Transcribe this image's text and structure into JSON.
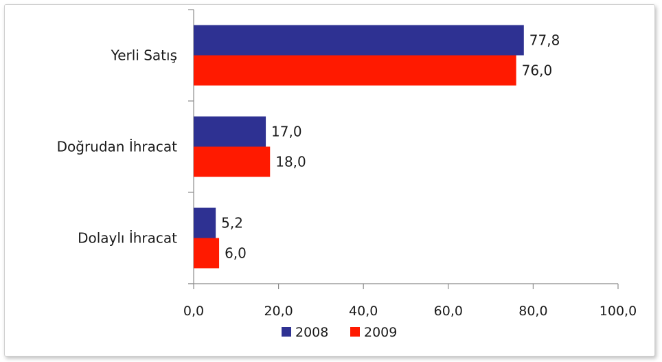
{
  "chart_data": {
    "type": "bar",
    "orientation": "horizontal",
    "categories": [
      "Yerli Satış",
      "Doğrudan İhracat",
      "Dolaylı İhracat"
    ],
    "series": [
      {
        "name": "2008",
        "color": "#2e3192",
        "values": [
          77.8,
          17.0,
          5.2
        ],
        "value_labels": [
          "77,8",
          "17,0",
          "5,2"
        ]
      },
      {
        "name": "2009",
        "color": "#ff1a00",
        "values": [
          76.0,
          18.0,
          6.0
        ],
        "value_labels": [
          "76,0",
          "18,0",
          "6,0"
        ]
      }
    ],
    "xlim": [
      0,
      100
    ],
    "xticks": [
      0,
      20,
      40,
      60,
      80,
      100
    ],
    "xtick_labels": [
      "0,0",
      "20,0",
      "40,0",
      "60,0",
      "80,0",
      "100,0"
    ],
    "title": "",
    "xlabel": "",
    "ylabel": "",
    "grid": false,
    "legend_position": "bottom"
  }
}
